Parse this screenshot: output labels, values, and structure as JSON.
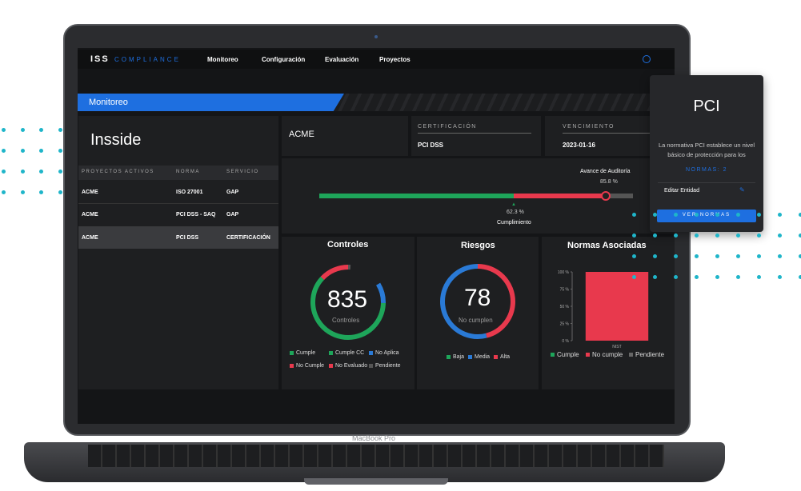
{
  "nav": {
    "brand": "ISS",
    "brand_sub": "COMPLIANCE",
    "items": [
      "Monitoreo",
      "Configuración",
      "Evaluación",
      "Proyectos"
    ]
  },
  "banner": "Monitoreo",
  "company": {
    "title": "Insside",
    "headers": [
      "PROYECTOS ACTIVOS",
      "NORMA",
      "SERVICIO"
    ],
    "rows": [
      [
        "ACME",
        "ISO 27001",
        "GAP"
      ],
      [
        "ACME",
        "PCI DSS - SAQ",
        "GAP"
      ],
      [
        "ACME",
        "PCI DSS",
        "CERTIFICACIÓN"
      ]
    ]
  },
  "info": {
    "entity": "ACME",
    "cert_label": "CERTIFICACIÓN",
    "cert_value": "PCI DSS",
    "exp_label": "VENCIMIENTO",
    "exp_value": "2023-01-16"
  },
  "progress": {
    "audit_label": "Avance de Auditoría",
    "audit_value": "85.8 %",
    "compliance_value": "62.3 %",
    "compliance_label": "Cumplimiento"
  },
  "controls": {
    "title": "Controles",
    "count": "835",
    "caption": "Controles",
    "legend": [
      "Cumple",
      "Cumple CC",
      "No Aplica",
      "No Cumple",
      "No Evaluado",
      "Pendiente"
    ]
  },
  "risks": {
    "title": "Riesgos",
    "count": "78",
    "caption": "No cumplen",
    "legend": [
      "Baja",
      "Media",
      "Alta"
    ]
  },
  "norms_chart": {
    "type": "bar",
    "title": "Normas Asociadas",
    "categories": [
      "NIST"
    ],
    "values": [
      100
    ],
    "color": "#e8394d",
    "ylim": [
      0,
      100
    ],
    "yticks": [
      {
        "value": 0,
        "label": "0 %"
      },
      {
        "value": 25,
        "label": "25 %"
      },
      {
        "value": 50,
        "label": "50 %"
      },
      {
        "value": 75,
        "label": "75 %"
      },
      {
        "value": 100,
        "label": "100 %"
      }
    ],
    "legend": [
      "Cumple",
      "No cumple",
      "Pendiente"
    ]
  },
  "device": "MacBook Pro",
  "card": {
    "title": "PCI",
    "description": "La normativa PCI establece un nivel básico de protección para los",
    "norms": "NORMAS: 2",
    "edit": "Editar Entidad",
    "button": "VER NORMAS"
  }
}
